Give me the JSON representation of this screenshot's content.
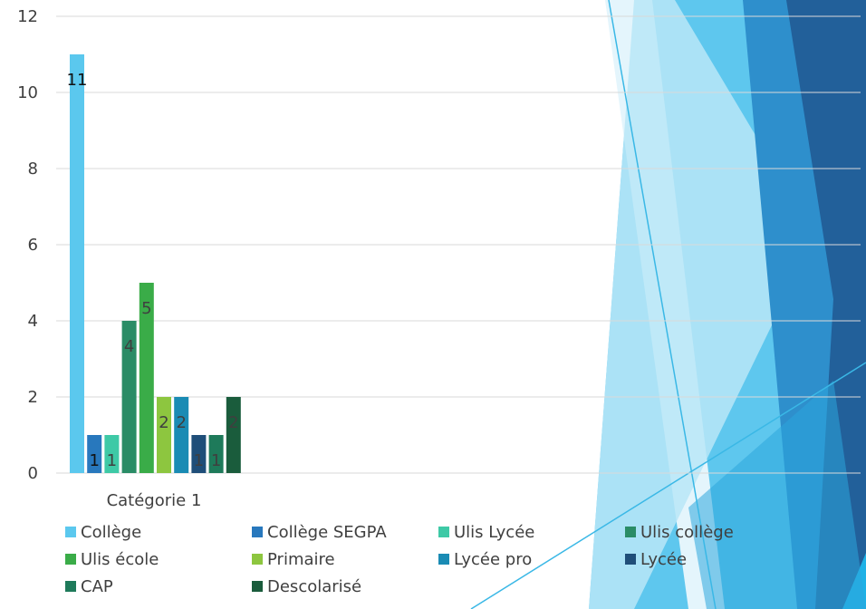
{
  "chart_data": {
    "type": "bar",
    "categories": [
      "Catégorie 1"
    ],
    "ylim": [
      0,
      12
    ],
    "yticks": [
      0,
      2,
      4,
      6,
      8,
      10,
      12
    ],
    "grid": true,
    "legend_position": "bottom",
    "series": [
      {
        "name": "Collège",
        "values": [
          11
        ],
        "label": "11",
        "color": "#5bc8ee",
        "label_color": "#111111"
      },
      {
        "name": "Collège SEGPA",
        "values": [
          1
        ],
        "label": "1",
        "color": "#2878bd",
        "label_color": "#111111"
      },
      {
        "name": "Ulis Lycée",
        "values": [
          1
        ],
        "label": "1",
        "color": "#3ec9a6",
        "label_color": "#3f3f3f"
      },
      {
        "name": "Ulis collège",
        "values": [
          4
        ],
        "label": "4",
        "color": "#2a8c66",
        "label_color": "#3f3f3f"
      },
      {
        "name": "Ulis école",
        "values": [
          5
        ],
        "label": "5",
        "color": "#3aac48",
        "label_color": "#3f3f3f"
      },
      {
        "name": "Primaire",
        "values": [
          2
        ],
        "label": "2",
        "color": "#8dc63f",
        "label_color": "#3f3f3f"
      },
      {
        "name": "Lycée pro",
        "values": [
          2
        ],
        "label": "2",
        "color": "#1a8bb4",
        "label_color": "#3f3f3f"
      },
      {
        "name": "Lycée",
        "values": [
          1
        ],
        "label": "1",
        "color": "#1f4e79",
        "label_color": "#3f3f3f"
      },
      {
        "name": "CAP",
        "values": [
          1
        ],
        "label": "1",
        "color": "#1e7a5a",
        "label_color": "#3f3f3f"
      },
      {
        "name": "Descolarisé",
        "values": [
          2
        ],
        "label": "2",
        "color": "#1a5c3c",
        "label_color": "#3f3f3f"
      }
    ]
  }
}
